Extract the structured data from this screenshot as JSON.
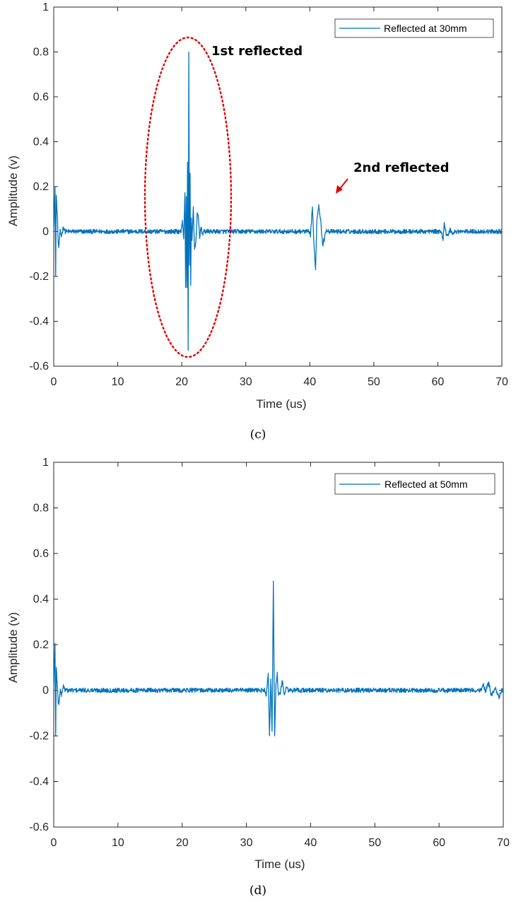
{
  "chart_data": [
    {
      "type": "line",
      "caption": "(c)",
      "xlabel": "Time (us)",
      "ylabel": "Amplitude (v)",
      "xlim": [
        0,
        70
      ],
      "ylim": [
        -0.6,
        1
      ],
      "xticks": [
        "0",
        "10",
        "20",
        "30",
        "40",
        "50",
        "60",
        "70"
      ],
      "yticks": [
        "-0.6",
        "-0.4",
        "-0.2",
        "0",
        "0.2",
        "0.4",
        "0.6",
        "0.8",
        "1"
      ],
      "grid": false,
      "legend_position": "top-right",
      "color": "#0072BD",
      "series": [
        {
          "name": "Reflected at 30mm",
          "noise_amplitude": 0.01,
          "events": [
            {
              "x": [
                0.0,
                0.2,
                0.3,
                0.4,
                0.5,
                0.6,
                0.7,
                0.8,
                1.0,
                1.2,
                1.5,
                1.8
              ],
              "y": [
                0.0,
                0.19,
                -0.2,
                0.16,
                0.1,
                0.05,
                -0.05,
                -0.07,
                0.0,
                -0.02,
                0.02,
                0.0
              ]
            },
            {
              "x": [
                19.9,
                20.1,
                20.3,
                20.5,
                20.6,
                20.7,
                20.8,
                20.9,
                21.0,
                21.1,
                21.2,
                21.3,
                21.4,
                21.5,
                21.6,
                21.8,
                22.0,
                22.2,
                22.4,
                22.6,
                22.8,
                23.0,
                23.2,
                23.5
              ],
              "y": [
                0.0,
                0.05,
                -0.03,
                0.17,
                -0.25,
                0.15,
                -0.25,
                0.3,
                -0.53,
                0.8,
                -0.15,
                0.25,
                -0.24,
                0.06,
                -0.04,
                0.11,
                -0.08,
                -0.05,
                0.08,
                0.06,
                -0.03,
                0.02,
                -0.01,
                0.0
              ]
            },
            {
              "x": [
                39.8,
                40.1,
                40.4,
                40.6,
                40.9,
                41.1,
                41.4,
                41.7,
                42.0,
                42.3,
                42.6,
                43.0
              ],
              "y": [
                0.0,
                -0.02,
                0.11,
                -0.03,
                -0.17,
                0.05,
                0.12,
                0.05,
                -0.06,
                -0.03,
                0.01,
                0.0
              ]
            },
            {
              "x": [
                60.5,
                60.8,
                61.0,
                61.3,
                61.6,
                61.9,
                62.3,
                62.7
              ],
              "y": [
                0.0,
                -0.04,
                0.04,
                -0.01,
                -0.02,
                0.01,
                -0.01,
                0.0
              ]
            }
          ]
        }
      ],
      "annotations": [
        "1st reflected",
        "2nd reflected"
      ]
    },
    {
      "type": "line",
      "caption": "(d)",
      "xlabel": "Time (us)",
      "ylabel": "Amplitude (v)",
      "xlim": [
        0,
        70
      ],
      "ylim": [
        -0.6,
        1
      ],
      "xticks": [
        "0",
        "10",
        "20",
        "30",
        "40",
        "50",
        "60",
        "70"
      ],
      "yticks": [
        "-0.6",
        "-0.4",
        "-0.2",
        "0",
        "0.2",
        "0.4",
        "0.6",
        "0.8",
        "1"
      ],
      "grid": false,
      "legend_position": "top-right",
      "color": "#0072BD",
      "series": [
        {
          "name": "Reflected at 50mm",
          "noise_amplitude": 0.01,
          "events": [
            {
              "x": [
                0.0,
                0.2,
                0.3,
                0.4,
                0.5,
                0.6,
                0.7,
                0.8,
                1.0,
                1.2,
                1.5,
                1.8
              ],
              "y": [
                0.0,
                0.2,
                -0.2,
                0.1,
                0.05,
                0.0,
                -0.05,
                -0.06,
                0.0,
                -0.02,
                0.02,
                0.0
              ]
            },
            {
              "x": [
                32.8,
                33.1,
                33.4,
                33.6,
                33.8,
                34.0,
                34.2,
                34.4,
                34.6,
                34.8,
                35.0,
                35.3,
                35.6,
                35.9,
                36.2,
                36.6
              ],
              "y": [
                0.0,
                -0.02,
                0.07,
                -0.2,
                0.05,
                -0.18,
                0.47,
                -0.2,
                0.02,
                0.07,
                -0.02,
                -0.01,
                0.04,
                -0.02,
                0.01,
                0.0
              ]
            },
            {
              "x": [
                66.6,
                66.9,
                67.2,
                67.5,
                67.8,
                68.1,
                68.4,
                68.8,
                69.3,
                69.7
              ],
              "y": [
                0.0,
                0.03,
                -0.01,
                0.02,
                0.03,
                -0.02,
                -0.01,
                0.01,
                -0.03,
                -0.01
              ]
            }
          ]
        }
      ],
      "annotations": []
    }
  ]
}
